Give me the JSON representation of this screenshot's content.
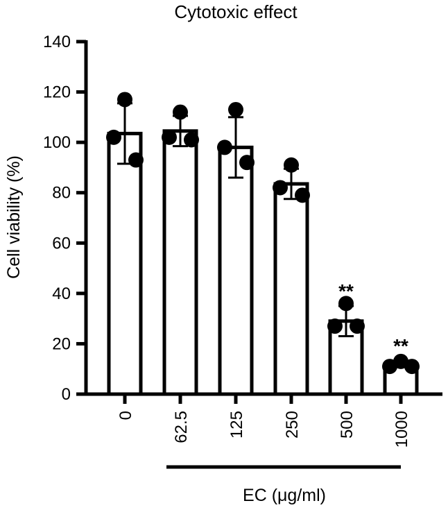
{
  "chart_data": {
    "type": "bar",
    "title": "Cytotoxic effect",
    "ylabel": "Cell viability (%)",
    "xlabel": "EC (μg/ml)",
    "ylim": [
      0,
      140
    ],
    "yticks": [
      0,
      20,
      40,
      60,
      80,
      100,
      120,
      140
    ],
    "categories": [
      "0",
      "62.5",
      "125",
      "250",
      "500",
      "1000"
    ],
    "values": [
      103.5,
      104.5,
      98,
      83.5,
      29,
      12
    ],
    "error": [
      12,
      6,
      12,
      6,
      6,
      1.2
    ],
    "points": [
      [
        117,
        102,
        93
      ],
      [
        112,
        101,
        102
      ],
      [
        113,
        98,
        92
      ],
      [
        91,
        82,
        79
      ],
      [
        36,
        27,
        27
      ],
      [
        13,
        11,
        11
      ]
    ],
    "significance": [
      "",
      "",
      "",
      "",
      "**",
      "**"
    ],
    "grid": false,
    "legend": "none"
  }
}
